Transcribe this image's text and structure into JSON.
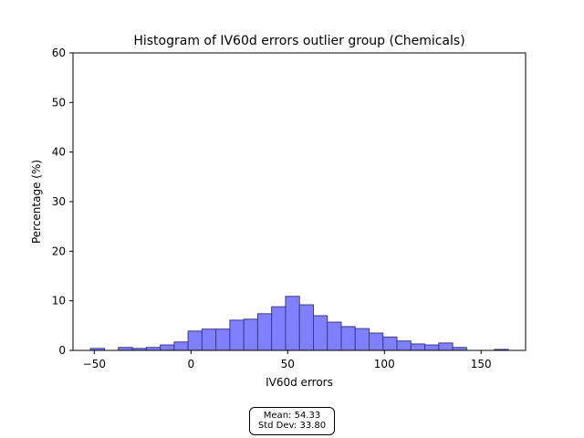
{
  "chart_data": {
    "type": "bar",
    "title": "Histogram of IV60d errors outlier group (Chemicals)",
    "xlabel": "IV60d errors",
    "ylabel": "Percentage (%)",
    "xlim": [
      -61,
      173
    ],
    "ylim": [
      0,
      60
    ],
    "xticks": [
      -50,
      0,
      50,
      100,
      150
    ],
    "yticks": [
      0,
      10,
      20,
      30,
      40,
      50,
      60
    ],
    "bin_edges": [
      -52.0,
      -44.7,
      -37.5,
      -30.3,
      -23.1,
      -15.9,
      -8.7,
      -1.5,
      5.7,
      12.9,
      20.1,
      27.3,
      34.5,
      41.7,
      48.9,
      56.1,
      63.3,
      70.5,
      77.7,
      84.9,
      92.1,
      99.3,
      106.5,
      113.7,
      120.9,
      128.1,
      135.3,
      142.5,
      149.7,
      156.9,
      164.1
    ],
    "values": [
      0.4,
      0.0,
      0.6,
      0.4,
      0.6,
      1.1,
      1.7,
      3.9,
      4.3,
      4.3,
      6.1,
      6.3,
      7.4,
      8.8,
      10.9,
      9.2,
      7.0,
      5.7,
      4.8,
      4.4,
      3.5,
      2.7,
      1.9,
      1.3,
      1.1,
      1.5,
      0.6,
      0.0,
      0.0,
      0.2
    ],
    "bar_color": "#8080ff",
    "edge_color": "#3a3a8c",
    "grid": false,
    "stats": {
      "mean": "Mean: 54.33",
      "std": "Std Dev: 33.80"
    }
  }
}
